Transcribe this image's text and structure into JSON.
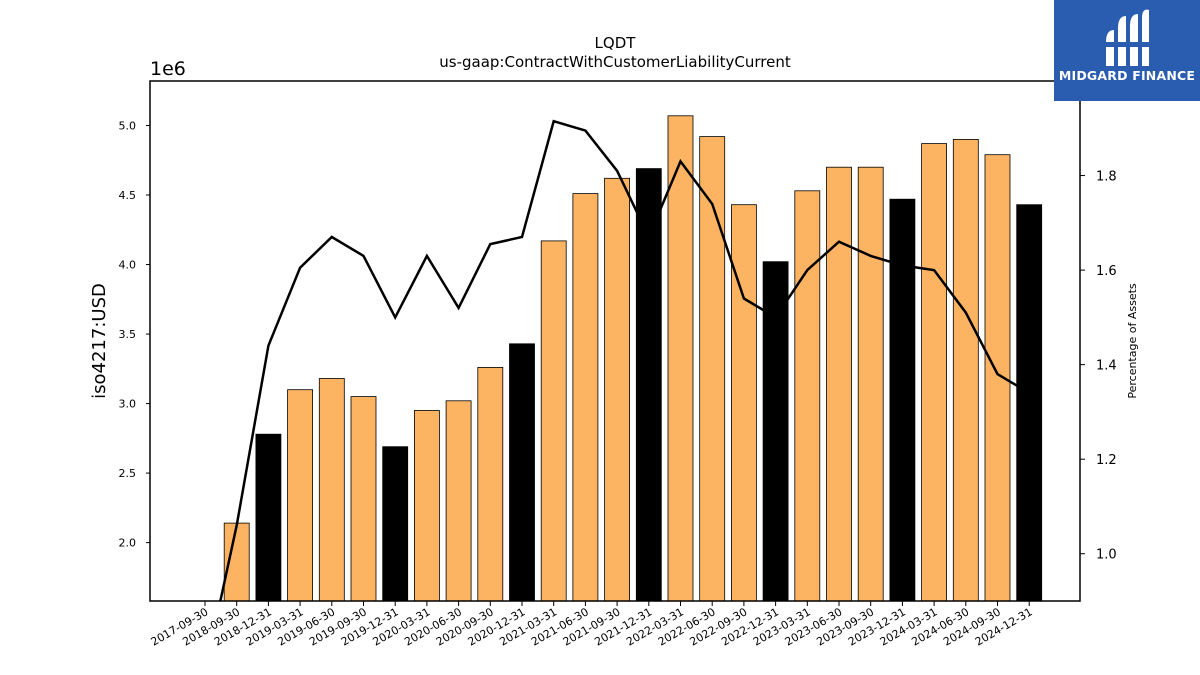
{
  "brand": {
    "name": "MIDGARD FINANCE",
    "bg_color": "#2a5db0",
    "icon": "midgard-logo-icon"
  },
  "chart_data": {
    "type": "bar",
    "title": "LQDT",
    "subtitle": "us-gaap:ContractWithCustomerLiabilityCurrent",
    "ylabel": "iso4217:USD",
    "y2label": "Percentage of Assets",
    "offset_label": "1e6",
    "ylim": [
      1.58,
      5.32
    ],
    "y_ticks": [
      2.0,
      2.5,
      3.0,
      3.5,
      4.0,
      4.5,
      5.0
    ],
    "y2lim": [
      0.9,
      2.0
    ],
    "y2_ticks": [
      1.0,
      1.2,
      1.4,
      1.6,
      1.8
    ],
    "grid": false,
    "colors": {
      "quarter_bar": "#fdb462",
      "year_end_bar": "#000000",
      "line": "#000000"
    },
    "categories": [
      "2017-09-30",
      "2018-09-30",
      "2018-12-31",
      "2019-03-31",
      "2019-06-30",
      "2019-09-30",
      "2019-12-31",
      "2020-03-31",
      "2020-06-30",
      "2020-09-30",
      "2020-12-31",
      "2021-03-31",
      "2021-06-30",
      "2021-09-30",
      "2021-12-31",
      "2022-03-31",
      "2022-06-30",
      "2022-09-30",
      "2022-12-31",
      "2023-03-31",
      "2023-06-30",
      "2023-09-30",
      "2023-12-31",
      "2024-03-31",
      "2024-06-30",
      "2024-09-30",
      "2024-12-31"
    ],
    "series": [
      {
        "kind": "bar",
        "axis": "left",
        "values": [
          null,
          2.14,
          2.78,
          3.1,
          3.18,
          3.05,
          2.69,
          2.95,
          3.02,
          3.26,
          3.43,
          4.17,
          4.51,
          4.62,
          4.69,
          5.07,
          4.92,
          4.43,
          4.02,
          4.53,
          4.7,
          4.7,
          4.47,
          4.87,
          4.9,
          4.79,
          4.43
        ],
        "highlight": [
          false,
          false,
          true,
          false,
          false,
          false,
          true,
          false,
          false,
          false,
          true,
          false,
          false,
          false,
          true,
          false,
          false,
          false,
          true,
          false,
          false,
          false,
          true,
          false,
          false,
          false,
          true
        ]
      },
      {
        "kind": "line",
        "axis": "right",
        "values": [
          0.75,
          1.06,
          1.44,
          1.605,
          1.67,
          1.63,
          1.5,
          1.63,
          1.52,
          1.655,
          1.67,
          1.915,
          1.895,
          1.81,
          1.67,
          1.83,
          1.74,
          1.54,
          1.5,
          1.6,
          1.66,
          1.63,
          1.61,
          1.6,
          1.51,
          1.38,
          1.34
        ]
      }
    ]
  }
}
